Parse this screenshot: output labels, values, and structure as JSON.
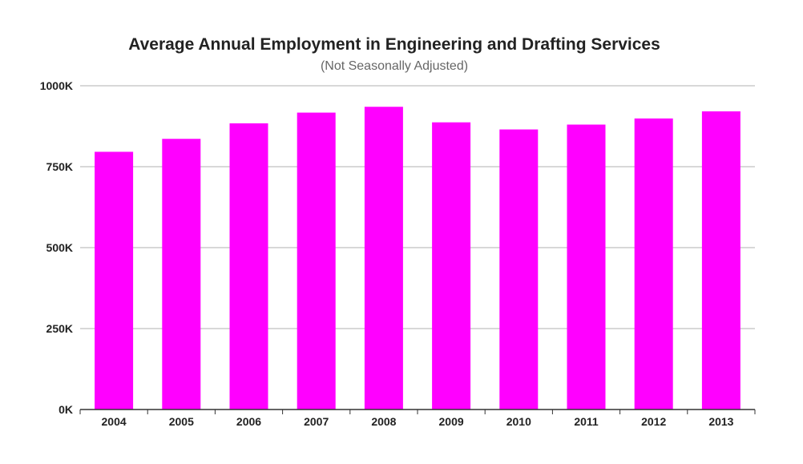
{
  "chart_data": {
    "type": "bar",
    "title": "Average Annual Employment in Engineering and Drafting Services",
    "subtitle": "(Not Seasonally Adjusted)",
    "xlabel": "",
    "ylabel": "",
    "categories": [
      "2004",
      "2005",
      "2006",
      "2007",
      "2008",
      "2009",
      "2010",
      "2011",
      "2012",
      "2013"
    ],
    "values": [
      796,
      836,
      884,
      917,
      935,
      887,
      865,
      880,
      899,
      921
    ],
    "unit": "K",
    "ylim": [
      0,
      1000
    ],
    "yticks": [
      0,
      250,
      500,
      750,
      1000
    ],
    "ytick_labels": [
      "0K",
      "250K",
      "500K",
      "750K",
      "1000K"
    ],
    "grid": true,
    "legend": "none",
    "colors": {
      "bar": "#ff00ff",
      "grid": "#cccccc",
      "axis": "#333333"
    }
  }
}
